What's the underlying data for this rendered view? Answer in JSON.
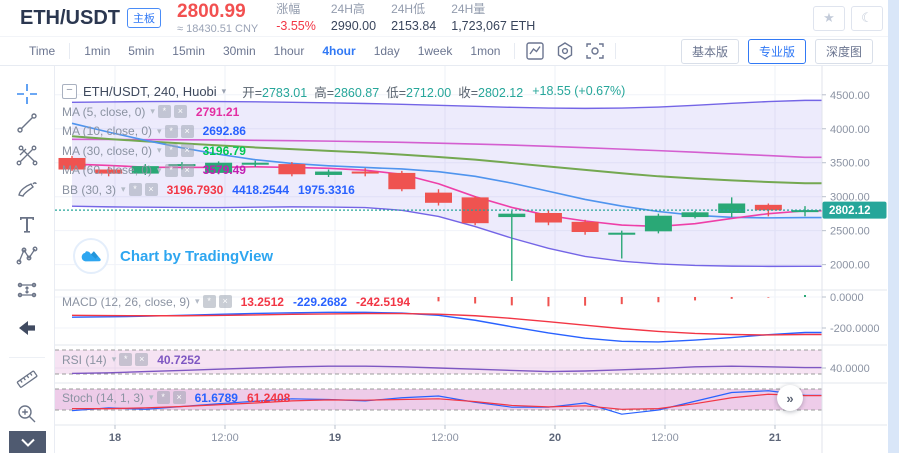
{
  "header": {
    "symbol": "ETH/USDT",
    "board_badge": "主板",
    "last_price": "2800.99",
    "approx_price": "≈ 18430.51 CNY",
    "stats": [
      {
        "label": "涨幅",
        "value": "-3.55%",
        "value_color": "#f23645"
      },
      {
        "label": "24H高",
        "value": "2990.00"
      },
      {
        "label": "24H低",
        "value": "2153.84"
      },
      {
        "label": "24H量",
        "value": "1,723,067 ETH"
      }
    ]
  },
  "toolbar": {
    "intervals": [
      "Time",
      "1min",
      "5min",
      "15min",
      "30min",
      "1hour",
      "4hour",
      "1day",
      "1week",
      "1mon"
    ],
    "active_interval": "4hour",
    "view_buttons": [
      "基本版",
      "专业版",
      "深度图"
    ],
    "active_view": "专业版"
  },
  "legend": {
    "title": "ETH/USDT, 240, Huobi",
    "ohlc": [
      {
        "label": "开=",
        "value": "2783.01"
      },
      {
        "label": "高=",
        "value": "2860.87"
      },
      {
        "label": "低=",
        "value": "2712.00"
      },
      {
        "label": "收=",
        "value": "2802.12"
      }
    ],
    "change": "+18.55 (+0.67%)",
    "value_color": "#26a69a",
    "label_color": "#59636f"
  },
  "indicators": [
    {
      "id": "ma5",
      "name": "MA (5, close, 0)",
      "values": [
        {
          "text": "2791.21",
          "color": "#e32ea2"
        }
      ]
    },
    {
      "id": "ma10",
      "name": "MA (10, close, 0)",
      "values": [
        {
          "text": "2692.86",
          "color": "#2962ff"
        }
      ]
    },
    {
      "id": "ma30",
      "name": "MA (30, close, 0)",
      "values": [
        {
          "text": "3196.79",
          "color": "#00c853"
        }
      ]
    },
    {
      "id": "ma60",
      "name": "MA (60, close, 0)",
      "values": [
        {
          "text": "3579.49",
          "color": "#c21fb2"
        }
      ]
    },
    {
      "id": "bb",
      "name": "BB (30, 3)",
      "values": [
        {
          "text": "3196.7930",
          "color": "#f23645"
        },
        {
          "text": "4418.2544",
          "color": "#2962ff"
        },
        {
          "text": "1975.3316",
          "color": "#2962ff"
        }
      ]
    }
  ],
  "panel_rows": {
    "macd": {
      "name": "MACD (12, 26, close, 9)",
      "values": [
        {
          "text": "13.2512",
          "color": "#f23645"
        },
        {
          "text": "-229.2682",
          "color": "#2962ff"
        },
        {
          "text": "-242.5194",
          "color": "#f23645"
        }
      ]
    },
    "rsi": {
      "name": "RSI (14)",
      "values": [
        {
          "text": "40.7252",
          "color": "#7e57c2"
        }
      ]
    },
    "stoch": {
      "name": "Stoch (14, 1, 3)",
      "values": [
        {
          "text": "61.6789",
          "color": "#2962ff"
        },
        {
          "text": "61.2408",
          "color": "#f23645"
        }
      ]
    }
  },
  "watermark": "Chart by TradingView",
  "more_button_glyph": "»",
  "chart_data": {
    "type": "candlestick",
    "title": "ETH/USDT, 240, Huobi",
    "interval": "240",
    "exchange": "Huobi",
    "current_price": 2802.12,
    "current_price_label": "2802.12",
    "price_line_color": "#26a69a",
    "badge_color": "#26a69a",
    "up_color": "#2aa876",
    "down_color": "#ef5350",
    "ylim_main": [
      1700,
      4600
    ],
    "ohlc": [
      [
        3570,
        3600,
        3380,
        3400
      ],
      [
        3400,
        3440,
        3300,
        3340
      ],
      [
        3340,
        3480,
        3320,
        3450
      ],
      [
        3450,
        3510,
        3400,
        3480
      ],
      [
        3350,
        3520,
        3330,
        3500
      ],
      [
        3490,
        3530,
        3440,
        3500
      ],
      [
        3480,
        3510,
        3300,
        3330
      ],
      [
        3320,
        3400,
        3290,
        3370
      ],
      [
        3370,
        3420,
        3300,
        3350
      ],
      [
        3350,
        3380,
        3080,
        3110
      ],
      [
        3060,
        3110,
        2870,
        2910
      ],
      [
        2990,
        3010,
        2580,
        2610
      ],
      [
        2700,
        2790,
        1760,
        2750
      ],
      [
        2760,
        2800,
        2580,
        2620
      ],
      [
        2630,
        2660,
        2440,
        2480
      ],
      [
        2440,
        2500,
        2090,
        2470
      ],
      [
        2490,
        2750,
        2460,
        2720
      ],
      [
        2700,
        2790,
        2680,
        2770
      ],
      [
        2760,
        2990,
        2700,
        2900
      ],
      [
        2880,
        2900,
        2710,
        2800
      ],
      [
        2783.01,
        2860.87,
        2712,
        2802.12
      ]
    ],
    "bb_fill": "rgba(116,101,230,0.13)",
    "series": [
      {
        "name": "bb_upper",
        "color": "#7465e6",
        "width": 1.4,
        "panel": "main",
        "values": [
          4390,
          4395,
          4400,
          4402,
          4400,
          4396,
          4390,
          4382,
          4372,
          4360,
          4345,
          4330,
          4315,
          4305,
          4300,
          4305,
          4320,
          4345,
          4375,
          4400,
          4418
        ]
      },
      {
        "name": "bb_lower",
        "color": "#7465e6",
        "width": 1.4,
        "panel": "main",
        "values": [
          2860,
          2850,
          2845,
          2842,
          2840,
          2845,
          2850,
          2848,
          2840,
          2800,
          2710,
          2560,
          2390,
          2240,
          2120,
          2050,
          2010,
          1988,
          1978,
          1974,
          1975
        ]
      },
      {
        "name": "ma60",
        "color": "#d45fd0",
        "width": 1.6,
        "panel": "main",
        "values": [
          3845,
          3842,
          3840,
          3838,
          3835,
          3830,
          3825,
          3818,
          3810,
          3800,
          3788,
          3775,
          3760,
          3742,
          3722,
          3700,
          3678,
          3655,
          3630,
          3605,
          3579
        ]
      },
      {
        "name": "ma30",
        "color": "#74a851",
        "width": 2,
        "panel": "main",
        "values": [
          3890,
          3850,
          3815,
          3785,
          3755,
          3725,
          3700,
          3675,
          3650,
          3620,
          3585,
          3545,
          3495,
          3445,
          3395,
          3345,
          3300,
          3268,
          3240,
          3216,
          3197
        ]
      },
      {
        "name": "ma10",
        "color": "#4f94ee",
        "width": 1.6,
        "panel": "main",
        "values": [
          4080,
          3950,
          3830,
          3720,
          3625,
          3545,
          3490,
          3455,
          3430,
          3408,
          3368,
          3300,
          3200,
          3080,
          2960,
          2862,
          2782,
          2726,
          2696,
          2688,
          2693
        ]
      },
      {
        "name": "ma5",
        "color": "#ee3fa8",
        "width": 1.6,
        "panel": "main",
        "values": [
          3480,
          3460,
          3435,
          3430,
          3432,
          3440,
          3430,
          3418,
          3390,
          3330,
          3190,
          3000,
          2842,
          2722,
          2642,
          2582,
          2562,
          2602,
          2680,
          2750,
          2791
        ]
      },
      {
        "name": "macd",
        "color": "#2962ff",
        "width": 1.4,
        "panel": "macd",
        "values": [
          -130,
          -128,
          -124,
          -118,
          -112,
          -106,
          -102,
          -99,
          -99,
          -104,
          -118,
          -150,
          -192,
          -232,
          -266,
          -286,
          -290,
          -278,
          -262,
          -243,
          -229
        ]
      },
      {
        "name": "macd_signal",
        "color": "#f23645",
        "width": 1.4,
        "panel": "macd",
        "values": [
          -118,
          -120,
          -121,
          -121,
          -119,
          -116,
          -112,
          -109,
          -107,
          -107,
          -111,
          -121,
          -138,
          -159,
          -182,
          -204,
          -222,
          -235,
          -242,
          -245,
          -242
        ]
      },
      {
        "name": "rsi",
        "color": "#7e57c2",
        "width": 1.4,
        "panel": "rsi",
        "values": [
          31,
          32,
          34,
          36,
          38,
          40,
          42,
          43,
          43,
          42,
          40,
          38,
          36,
          34,
          35,
          37,
          39,
          42,
          43,
          42,
          40.7
        ]
      },
      {
        "name": "stoch_k",
        "color": "#2962ff",
        "width": 1.2,
        "panel": "stoch",
        "values": [
          18,
          26,
          22,
          30,
          38,
          45,
          52,
          50,
          46,
          55,
          60,
          42,
          28,
          28,
          40,
          8,
          20,
          45,
          70,
          75,
          62
        ]
      },
      {
        "name": "stoch_d",
        "color": "#f23645",
        "width": 1.2,
        "panel": "stoch",
        "values": [
          24,
          24,
          26,
          30,
          35,
          40,
          46,
          49,
          48,
          50,
          52,
          44,
          33,
          29,
          32,
          22,
          24,
          38,
          55,
          65,
          61
        ]
      }
    ],
    "macd_hist": [
      0,
      0,
      0,
      0,
      0,
      0,
      0,
      0,
      0,
      0,
      -28,
      -42,
      -54,
      -60,
      -56,
      -46,
      -34,
      -22,
      -12,
      -4,
      13
    ],
    "y_axis": {
      "main": [
        {
          "v": 4500,
          "label": "4500.00"
        },
        {
          "v": 4000,
          "label": "4000.00"
        },
        {
          "v": 3500,
          "label": "3500.00"
        },
        {
          "v": 3000,
          "label": "3000.00"
        },
        {
          "v": 2500,
          "label": "2500.00"
        },
        {
          "v": 2000,
          "label": "2000.00"
        }
      ],
      "macd": [
        {
          "v": 0,
          "label": "0.0000"
        },
        {
          "v": -200,
          "label": "-200.0000"
        }
      ],
      "rsi": [
        {
          "v": 40,
          "label": "40.0000"
        }
      ]
    },
    "x_axis": [
      {
        "label": "18",
        "major": true
      },
      {
        "label": "12:00",
        "major": false
      },
      {
        "label": "19",
        "major": true
      },
      {
        "label": "12:00",
        "major": false
      },
      {
        "label": "20",
        "major": true
      },
      {
        "label": "12:00",
        "major": false
      },
      {
        "label": "21",
        "major": true
      }
    ],
    "bands": {
      "rsi": [
        30,
        70
      ],
      "stoch": [
        20,
        80
      ],
      "fill_rsi": "rgba(213,128,201,0.22)",
      "fill_stoch": "rgba(213,128,201,0.40)",
      "line_color": "#9b9b9b"
    }
  }
}
